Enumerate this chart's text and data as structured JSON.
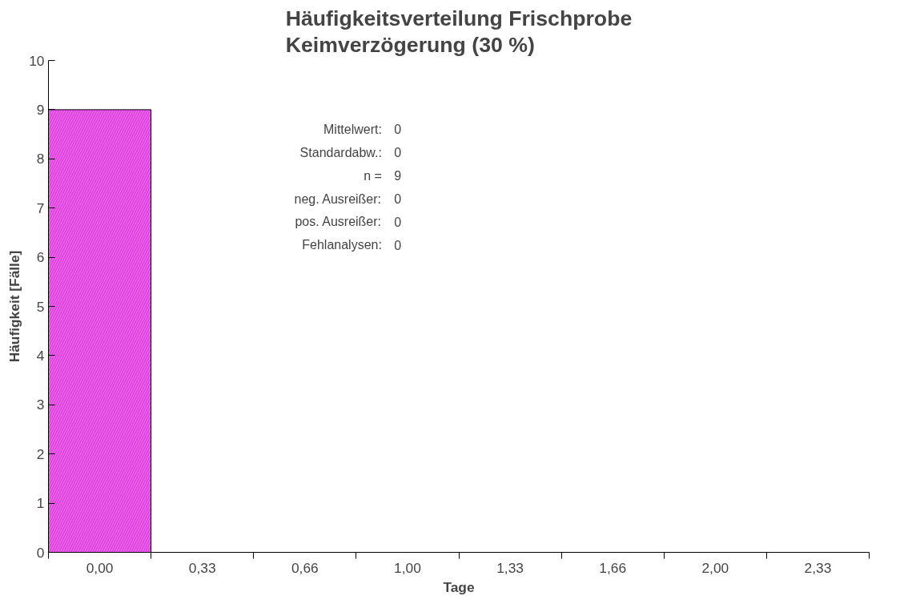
{
  "chart_data": {
    "type": "bar",
    "title": "Häufigkeitsverteilung Frischprobe\nKeimverzögerung (30 %)",
    "xlabel": "Tage",
    "ylabel": "Häufigkeit [Fälle]",
    "categories": [
      "0,00",
      "0,33",
      "0,66",
      "1,00",
      "1,33",
      "1,66",
      "2,00",
      "2,33"
    ],
    "values": [
      9,
      0,
      0,
      0,
      0,
      0,
      0,
      0
    ],
    "color": "#dd44dd",
    "ylim": [
      0,
      10
    ],
    "yticks": [
      0,
      1,
      2,
      3,
      4,
      5,
      6,
      7,
      8,
      9,
      10
    ],
    "grid": false,
    "annotations": [
      "Mittelwert:",
      "0",
      "Standardabw.:",
      "0",
      "n =",
      "9",
      "neg. Ausreißer:",
      "0",
      "pos. Ausreißer:",
      "0",
      "Fehlanalysen:",
      "0"
    ]
  }
}
